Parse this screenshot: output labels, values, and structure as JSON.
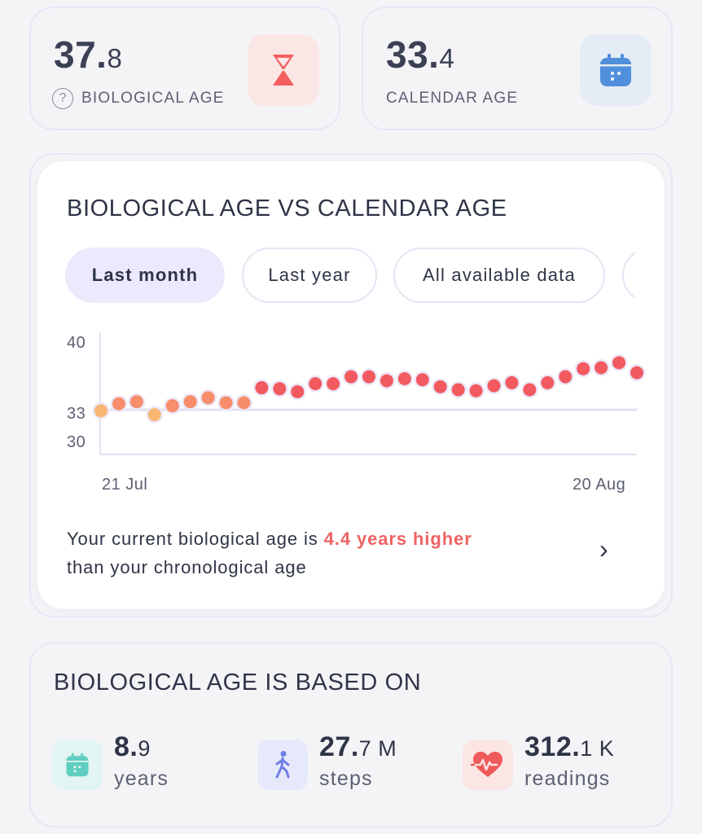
{
  "biological_age": {
    "integer": "37.",
    "decimal": "8",
    "label": "BIOLOGICAL AGE",
    "help_symbol": "?",
    "icon": "hourglass-icon",
    "tile_color": "#fbe6e6",
    "icon_color": "#f35f5f"
  },
  "calendar_age": {
    "integer": "33.",
    "decimal": "4",
    "label": "CALENDAR AGE",
    "icon": "calendar-icon",
    "tile_color": "#e5ecf6",
    "icon_color": "#4f8fdb"
  },
  "chart_section": {
    "title": "BIOLOGICAL AGE VS CALENDAR AGE",
    "tabs": [
      {
        "label": "Last month",
        "active": true
      },
      {
        "label": "Last year",
        "active": false
      },
      {
        "label": "All available data",
        "active": false
      }
    ],
    "summary_prefix": "Your current biological age is ",
    "summary_highlight": "4.4 years higher",
    "summary_suffix": "than your chronological age",
    "chevron": "›"
  },
  "chart_data": {
    "type": "scatter",
    "x": [
      "21 Jul",
      "22 Jul",
      "23 Jul",
      "24 Jul",
      "25 Jul",
      "26 Jul",
      "27 Jul",
      "28 Jul",
      "29 Jul",
      "30 Jul",
      "31 Jul",
      "1 Aug",
      "2 Aug",
      "3 Aug",
      "4 Aug",
      "5 Aug",
      "6 Aug",
      "7 Aug",
      "8 Aug",
      "9 Aug",
      "10 Aug",
      "11 Aug",
      "12 Aug",
      "13 Aug",
      "14 Aug",
      "15 Aug",
      "16 Aug",
      "17 Aug",
      "18 Aug",
      "19 Aug",
      "20 Aug"
    ],
    "series": [
      {
        "values": [
          33.3,
          34.0,
          34.2,
          32.9,
          33.8,
          34.2,
          34.6,
          34.1,
          34.1,
          35.6,
          35.5,
          35.2,
          36.0,
          36.0,
          36.7,
          36.7,
          36.3,
          36.5,
          36.4,
          35.7,
          35.4,
          35.3,
          35.8,
          36.1,
          35.4,
          36.1,
          36.7,
          37.5,
          37.6,
          38.1,
          37.1
        ]
      },
      {
        "values": [
          33.4,
          33.4
        ]
      }
    ],
    "calendar_age": 33.4,
    "yticks": [
      30,
      33,
      40
    ],
    "ylim": [
      30,
      40
    ],
    "xticks": [
      "21 Jul",
      "20 Aug"
    ],
    "colors": {
      "low": "#f7b773",
      "mid": "#f78d6b",
      "high": "#f25a60",
      "baseline": "#e2dff2",
      "halo": "#ece8fa"
    },
    "grid": false
  },
  "based_on": {
    "title": "BIOLOGICAL AGE IS BASED ON",
    "items": [
      {
        "value": "8.",
        "value_small": "9",
        "unit": "years",
        "icon": "calendar-icon",
        "tile_color": "#e2f5f2",
        "icon_color": "#5ecfc0"
      },
      {
        "value": "27.",
        "value_small": "7 M",
        "unit": "steps",
        "icon": "walking-person-icon",
        "tile_color": "#e6e9fb",
        "icon_color": "#6f7fe6"
      },
      {
        "value": "312.",
        "value_small": "1 K",
        "unit": "readings",
        "icon": "heart-pulse-icon",
        "tile_color": "#fbe5e5",
        "icon_color": "#f05a5a"
      }
    ]
  }
}
